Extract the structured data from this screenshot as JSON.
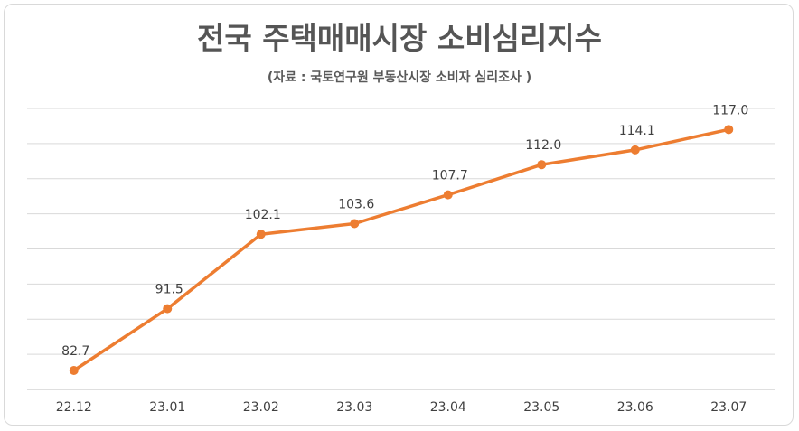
{
  "title": "전국 주택매매시장 소비심리지수",
  "subtitle": "(자료 :  국토연구원 부동산시장 소비자 심리조사 )",
  "chart_data": {
    "type": "line",
    "title": "전국 주택매매시장 소비심리지수",
    "subtitle": "(자료 :  국토연구원 부동산시장 소비자 심리조사 )",
    "categories": [
      "22.12",
      "23.01",
      "23.02",
      "23.03",
      "23.04",
      "23.05",
      "23.06",
      "23.07"
    ],
    "series": [
      {
        "values": [
          82.7,
          91.5,
          102.1,
          103.6,
          107.7,
          112.0,
          114.1,
          117.0
        ]
      }
    ],
    "data_labels": [
      "82.7",
      "91.5",
      "102.1",
      "103.6",
      "107.7",
      "112.0",
      "114.1",
      "117.0"
    ],
    "ylim": [
      80,
      120
    ],
    "y_gridlines": [
      80,
      85,
      90,
      95,
      100,
      105,
      110,
      115,
      120
    ],
    "y_axis_labels_shown": false,
    "grid": true,
    "legend": "none",
    "line_color": "#ed7d31",
    "grid_color": "#d9d9d9"
  }
}
